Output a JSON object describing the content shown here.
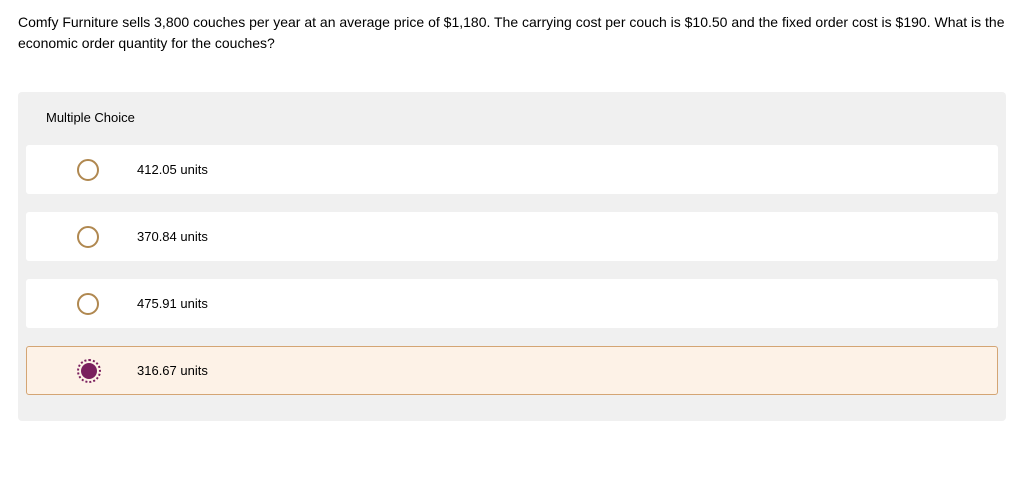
{
  "question": {
    "text": "Comfy Furniture sells 3,800 couches per year at an average price of $1,180. The carrying cost per couch is $10.50 and the fixed order cost is $190. What is the economic order quantity for the couches?"
  },
  "mc_header": "Multiple Choice",
  "options": [
    {
      "label": "412.05 units",
      "selected": false
    },
    {
      "label": "370.84 units",
      "selected": false
    },
    {
      "label": "475.91 units",
      "selected": false
    },
    {
      "label": "316.67 units",
      "selected": true
    }
  ],
  "colors": {
    "background_gray": "#f0f0f0",
    "option_white": "#ffffff",
    "selected_bg": "#fdf2e7",
    "selected_border": "#d4a574",
    "radio_border": "#b08850",
    "radio_selected": "#7a1f5e",
    "text": "#000000"
  }
}
